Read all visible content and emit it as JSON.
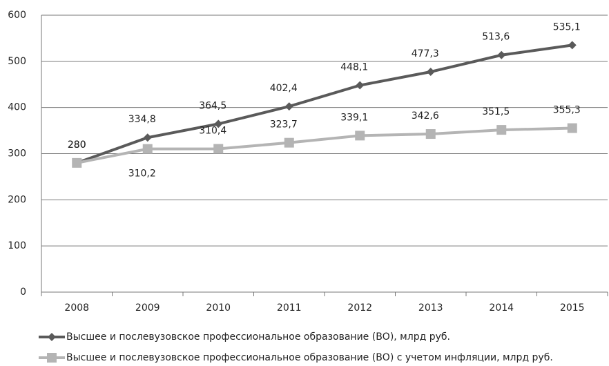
{
  "chart_data": {
    "type": "line",
    "categories": [
      "2008",
      "2009",
      "2010",
      "2011",
      "2012",
      "2013",
      "2014",
      "2015"
    ],
    "series": [
      {
        "name": "Высшее и послевузовское профессиональное образование (ВО), млрд  руб.",
        "color": "#5a5a5a",
        "marker": "diamond",
        "values": [
          280,
          334.8,
          364.5,
          402.4,
          448.1,
          477.3,
          513.6,
          535.1
        ],
        "value_labels": [
          "280",
          "334,8",
          "364,5",
          "402,4",
          "448,1",
          "477,3",
          "513,6",
          "535,1"
        ]
      },
      {
        "name": "Высшее и послевузовское профессиональное образование (ВО) с учетом инфляции, млрд  руб.",
        "color": "#b4b4b4",
        "marker": "square",
        "values": [
          280,
          310.2,
          310.4,
          323.7,
          339.1,
          342.6,
          351.5,
          355.3
        ],
        "value_labels": [
          "280",
          "310,2",
          "310,4",
          "323,7",
          "339,1",
          "342,6",
          "351,5",
          "355,3"
        ]
      }
    ],
    "ylim": [
      0,
      600
    ],
    "yticks": [
      0,
      100,
      200,
      300,
      400,
      500,
      600
    ],
    "grid": true,
    "legend": "bottom"
  }
}
